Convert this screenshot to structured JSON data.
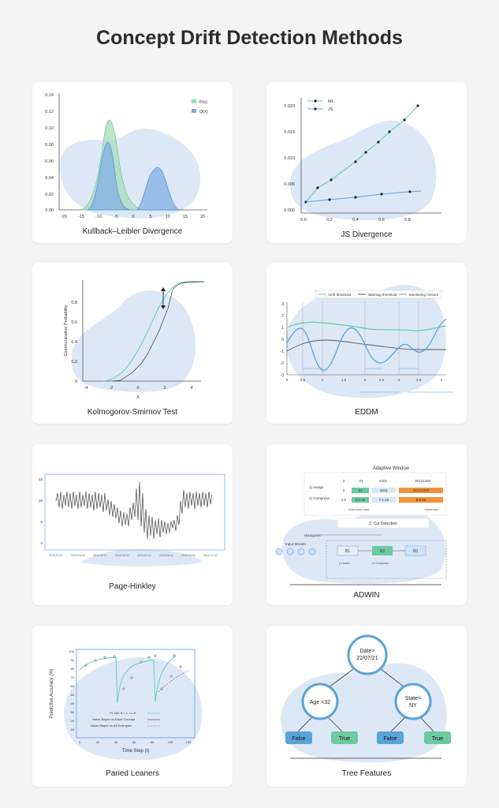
{
  "page_title": "Concept Drift Detection Methods",
  "cards": {
    "kl": {
      "caption": "Kullback–Leibler Divergence",
      "legend": [
        "P(x)",
        "Q(x)"
      ],
      "yticks": [
        "0.14",
        "0.12",
        "0.10",
        "0.08",
        "0.06",
        "0.04",
        "0.02",
        "0.00"
      ],
      "xticks": [
        "-20",
        "-15",
        "-10",
        "-5",
        "0",
        "5",
        "10",
        "15",
        "20"
      ],
      "colors": {
        "p": "#9ed8b4",
        "q": "#7aa7dd"
      }
    },
    "js": {
      "caption": "JS Divergence",
      "legend": [
        "ML",
        "JS"
      ],
      "yticks": [
        "0.020",
        "0.015",
        "0.010",
        "0.005",
        "0.000"
      ],
      "xticks": [
        "0.0",
        "0.2",
        "0.4",
        "0.6",
        "0.8"
      ]
    },
    "ks": {
      "caption": "Kolmogorov-Smirnov Test",
      "ylabel": "Communicative Probability",
      "xlabel": "X",
      "yticks": [
        "0.8",
        "0.6",
        "0.4",
        "0.2",
        "0"
      ],
      "xticks": [
        "-4",
        "-2",
        "-4",
        "0",
        "2",
        "4"
      ]
    },
    "eddm": {
      "caption": "EDDM",
      "legend": [
        "Drift threshold",
        "Warning threshold",
        "Monitoring mesure"
      ],
      "yticks": [
        "3",
        "2",
        "1",
        "0",
        "-1",
        "-2",
        "-3"
      ],
      "xticks": [
        "0",
        "0.5",
        "1",
        "1.5",
        "2",
        "2.5",
        "3",
        "3.5",
        "4"
      ]
    },
    "ph": {
      "caption": "Page-Hinkley",
      "yticks": [
        "15",
        "10",
        "5",
        "0"
      ],
      "xticks": [
        "2019-03-01",
        "2019-04-01",
        "2019-05-01",
        "2019-06-01",
        "2019-07-01",
        "2019-08-01",
        "2019-09-01",
        "2019-10-01"
      ]
    },
    "adwin": {
      "caption": "ADWIN",
      "window_title": "Adaptive Window",
      "step_assign": "1) Assign",
      "step_compress": "2) Compress",
      "row1": [
        "2",
        "21",
        "4201",
        "20121300"
      ],
      "row2": [
        "2",
        "21",
        "4201",
        "20121300"
      ],
      "row3": [
        "2.0",
        "3.0 25",
        "7.1.43",
        "6.6.63"
      ],
      "most_recent": "most recent data",
      "oldest": "Oldest data",
      "cut_detection": "2. Cut Detection",
      "histogram": "Histogram",
      "input_stream": "Input Stream",
      "buckets": [
        "B1",
        "B2",
        "B3"
      ],
      "insert": "L1 Insert",
      "compress": "L2 Compress"
    },
    "paired": {
      "caption": "Paried Leaners",
      "ylabel": "Predictive Accuracy (%)",
      "xlabel": "Time Step (t)",
      "legend": [
        "PL-NB, θ = 1, ω=5",
        "Naive Bayes on Each Concept",
        "Naive Bayes on All Examples"
      ],
      "yticks": [
        "100",
        "90",
        "80",
        "70",
        "60",
        "50",
        "40",
        "30",
        "20",
        "10"
      ],
      "xticks": [
        "0",
        "20",
        "40",
        "60",
        "80",
        "100",
        "120"
      ]
    },
    "tree": {
      "caption": "Tree Features",
      "root": [
        "Date>",
        "22/07/21"
      ],
      "left": "Age <32",
      "right": [
        "State=",
        "NY"
      ],
      "leaves": [
        "False",
        "True",
        "False",
        "True"
      ]
    }
  }
}
